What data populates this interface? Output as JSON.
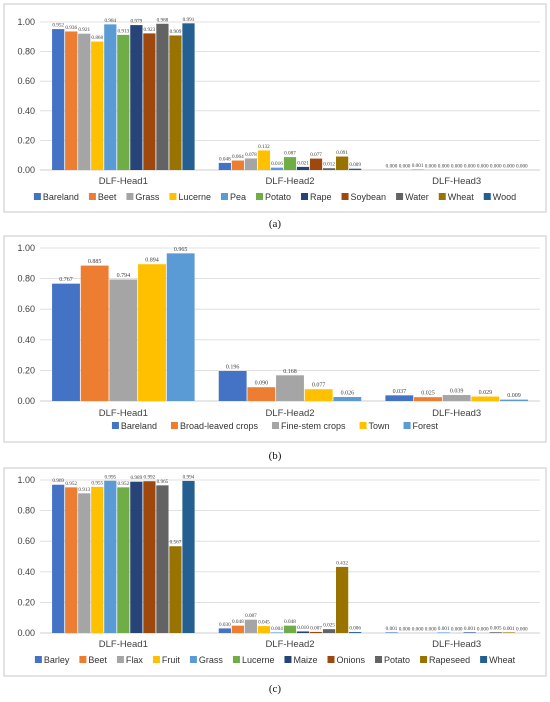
{
  "captions": [
    "(a)",
    "(b)",
    "(c)"
  ],
  "chart_data": [
    {
      "type": "bar",
      "categories": [
        "DLF-Head1",
        "DLF-Head2",
        "DLF-Head3"
      ],
      "ylim": [
        0,
        1.0
      ],
      "yticks": [
        "0.00",
        "0.20",
        "0.40",
        "0.60",
        "0.80",
        "1.00"
      ],
      "legend_position": "bottom",
      "grid": true,
      "series": [
        {
          "name": "Bareland",
          "color": "#4472c4",
          "values": [
            0.952,
            0.048,
            0.0
          ],
          "labels": [
            "0.952",
            "0.048",
            "0.000"
          ]
        },
        {
          "name": "Beet",
          "color": "#ed7d31",
          "values": [
            0.936,
            0.064,
            0.0
          ],
          "labels": [
            "0.936",
            "0.064",
            "0.000"
          ]
        },
        {
          "name": "Grass",
          "color": "#a5a5a5",
          "values": [
            0.921,
            0.078,
            0.001
          ],
          "labels": [
            "0.921",
            "0.078",
            "0.001"
          ]
        },
        {
          "name": "Lucerne",
          "color": "#ffc000",
          "values": [
            0.868,
            0.132,
            0.0
          ],
          "labels": [
            "0.868",
            "0.132",
            "0.000"
          ]
        },
        {
          "name": "Pea",
          "color": "#5b9bd5",
          "values": [
            0.984,
            0.016,
            0.0
          ],
          "labels": [
            "0.984",
            "0.016",
            "0.000"
          ]
        },
        {
          "name": "Potato",
          "color": "#70ad47",
          "values": [
            0.913,
            0.087,
            0.0
          ],
          "labels": [
            "0.913",
            "0.087",
            "0.000"
          ]
        },
        {
          "name": "Rape",
          "color": "#264478",
          "values": [
            0.979,
            0.021,
            0.0
          ],
          "labels": [
            "0.979",
            "0.021",
            "0.000"
          ]
        },
        {
          "name": "Soybean",
          "color": "#9e480e",
          "values": [
            0.923,
            0.077,
            0.0
          ],
          "labels": [
            "0.923",
            "0.077",
            "0.000"
          ]
        },
        {
          "name": "Water",
          "color": "#636363",
          "values": [
            0.988,
            0.012,
            0.0
          ],
          "labels": [
            "0.988",
            "0.012",
            "0.000"
          ]
        },
        {
          "name": "Wheat",
          "color": "#997300",
          "values": [
            0.909,
            0.091,
            0.0
          ],
          "labels": [
            "0.909",
            "0.091",
            "0.000"
          ]
        },
        {
          "name": "Wood",
          "color": "#255e91",
          "values": [
            0.991,
            0.009,
            0.0
          ],
          "labels": [
            "0.991",
            "0.009",
            "0.000"
          ]
        }
      ]
    },
    {
      "type": "bar",
      "categories": [
        "DLF-Head1",
        "DLF-Head2",
        "DLF-Head3"
      ],
      "ylim": [
        0,
        1.0
      ],
      "yticks": [
        "0.00",
        "0.20",
        "0.40",
        "0.60",
        "0.80",
        "1.00"
      ],
      "legend_position": "bottom",
      "grid": true,
      "series": [
        {
          "name": "Bareland",
          "color": "#4472c4",
          "values": [
            0.767,
            0.196,
            0.037
          ],
          "labels": [
            "0.767",
            "0.196",
            "0.037"
          ]
        },
        {
          "name": "Broad-leaved crops",
          "color": "#ed7d31",
          "values": [
            0.885,
            0.09,
            0.025
          ],
          "labels": [
            "0.885",
            "0.090",
            "0.025"
          ]
        },
        {
          "name": "Fine-stem crops",
          "color": "#a5a5a5",
          "values": [
            0.794,
            0.168,
            0.039
          ],
          "labels": [
            "0.794",
            "0.168",
            "0.039"
          ]
        },
        {
          "name": "Town",
          "color": "#ffc000",
          "values": [
            0.894,
            0.077,
            0.029
          ],
          "labels": [
            "0.894",
            "0.077",
            "0.029"
          ]
        },
        {
          "name": "Forest",
          "color": "#5b9bd5",
          "values": [
            0.965,
            0.026,
            0.009
          ],
          "labels": [
            "0.965",
            "0.026",
            "0.009"
          ]
        }
      ]
    },
    {
      "type": "bar",
      "categories": [
        "DLF-Head1",
        "DLF-Head2",
        "DLF-Head3"
      ],
      "ylim": [
        0,
        1.0
      ],
      "yticks": [
        "0.00",
        "0.20",
        "0.40",
        "0.60",
        "0.80",
        "1.00"
      ],
      "legend_position": "bottom",
      "grid": true,
      "series": [
        {
          "name": "Barley",
          "color": "#4472c4",
          "values": [
            0.969,
            0.03,
            0.001
          ],
          "labels": [
            "0.969",
            "0.030",
            "0.001"
          ]
        },
        {
          "name": "Beet",
          "color": "#ed7d31",
          "values": [
            0.952,
            0.048,
            0.0
          ],
          "labels": [
            "0.952",
            "0.048",
            "0.000"
          ]
        },
        {
          "name": "Flax",
          "color": "#a5a5a5",
          "values": [
            0.913,
            0.087,
            0.0
          ],
          "labels": [
            "0.913",
            "0.087",
            "0.000"
          ]
        },
        {
          "name": "Fruit",
          "color": "#ffc000",
          "values": [
            0.955,
            0.045,
            0.0
          ],
          "labels": [
            "0.955",
            "0.045",
            "0.000"
          ]
        },
        {
          "name": "Grass",
          "color": "#5b9bd5",
          "values": [
            0.995,
            0.004,
            0.001
          ],
          "labels": [
            "0.995",
            "0.004",
            "0.001"
          ]
        },
        {
          "name": "Lucerne",
          "color": "#70ad47",
          "values": [
            0.952,
            0.048,
            0.0
          ],
          "labels": [
            "0.952",
            "0.048",
            "0.000"
          ]
        },
        {
          "name": "Maize",
          "color": "#264478",
          "values": [
            0.989,
            0.01,
            0.001
          ],
          "labels": [
            "0.989",
            "0.010",
            "0.001"
          ]
        },
        {
          "name": "Onions",
          "color": "#9e480e",
          "values": [
            0.992,
            0.007,
            0.0
          ],
          "labels": [
            "0.992",
            "0.007",
            "0.000"
          ]
        },
        {
          "name": "Potato",
          "color": "#636363",
          "values": [
            0.965,
            0.025,
            0.005
          ],
          "labels": [
            "0.965",
            "0.025",
            "0.005"
          ]
        },
        {
          "name": "Rapeseed",
          "color": "#997300",
          "values": [
            0.567,
            0.432,
            0.001
          ],
          "labels": [
            "0.567",
            "0.432",
            "0.001"
          ]
        },
        {
          "name": "Wheat",
          "color": "#255e91",
          "values": [
            0.994,
            0.006,
            0.0
          ],
          "labels": [
            "0.994",
            "0.006",
            "0.000"
          ]
        }
      ]
    }
  ]
}
